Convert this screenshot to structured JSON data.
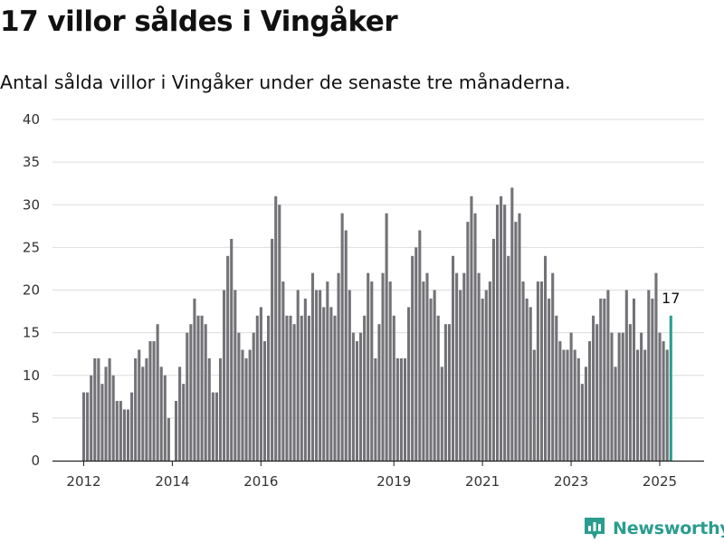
{
  "title": "17 villor såldes i Vingåker",
  "subtitle": "Antal sålda villor i Vingåker under de senaste tre månaderna.",
  "brand": {
    "name": "Newsworthy",
    "icon": "newsworthy-logo-icon"
  },
  "colors": {
    "bar": "#737277",
    "highlight": "#2a9d8f",
    "grid": "#dddddd",
    "axis": "#222222"
  },
  "chart_data": {
    "type": "bar",
    "start_month": "2012-01",
    "values": [
      8,
      8,
      10,
      12,
      12,
      9,
      11,
      12,
      10,
      7,
      7,
      6,
      6,
      8,
      12,
      13,
      11,
      12,
      14,
      14,
      16,
      11,
      10,
      5,
      0,
      7,
      11,
      9,
      15,
      16,
      19,
      17,
      17,
      16,
      12,
      8,
      8,
      12,
      20,
      24,
      26,
      20,
      15,
      13,
      12,
      13,
      15,
      17,
      18,
      14,
      17,
      26,
      31,
      30,
      21,
      17,
      17,
      16,
      20,
      17,
      19,
      17,
      22,
      20,
      20,
      18,
      21,
      18,
      17,
      22,
      29,
      27,
      20,
      15,
      14,
      15,
      17,
      22,
      21,
      12,
      16,
      22,
      29,
      21,
      17,
      12,
      12,
      12,
      18,
      24,
      25,
      27,
      21,
      22,
      19,
      20,
      17,
      11,
      16,
      16,
      24,
      22,
      20,
      22,
      28,
      31,
      29,
      22,
      19,
      20,
      21,
      26,
      30,
      31,
      30,
      24,
      32,
      28,
      29,
      21,
      19,
      18,
      13,
      21,
      21,
      24,
      19,
      22,
      17,
      14,
      13,
      13,
      15,
      13,
      12,
      9,
      11,
      14,
      17,
      16,
      19,
      19,
      20,
      15,
      11,
      15,
      15,
      20,
      16,
      19,
      13,
      15,
      13,
      20,
      19,
      22,
      15,
      14,
      13,
      17
    ],
    "highlight_value": 17,
    "highlight_label": "17",
    "ylim": [
      0,
      40
    ],
    "yticks": [
      0,
      5,
      10,
      15,
      20,
      25,
      30,
      35,
      40
    ],
    "xticks": [
      "2012",
      "2014",
      "2016",
      "2019",
      "2021",
      "2023",
      "2025"
    ],
    "xlabel": "",
    "ylabel": "",
    "grid": true
  }
}
